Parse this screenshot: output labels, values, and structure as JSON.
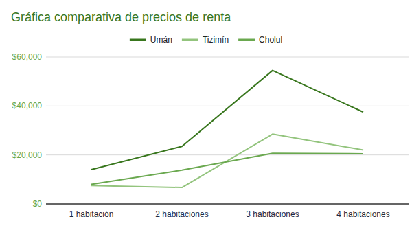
{
  "chart_data": {
    "type": "line",
    "title": "Gráfica comparativa de precios de renta",
    "categories": [
      "1 habitación",
      "2 habitaciones",
      "3 habitaciones",
      "4 habitaciones"
    ],
    "series": [
      {
        "name": "Umán",
        "color": "#38761d",
        "values": [
          14000,
          23500,
          54500,
          37500
        ]
      },
      {
        "name": "Tizimín",
        "color": "#93c47d",
        "values": [
          7500,
          6700,
          28500,
          22000
        ]
      },
      {
        "name": "Cholul",
        "color": "#6aa84f",
        "values": [
          8000,
          13800,
          20700,
          20500
        ]
      }
    ],
    "ylim": [
      0,
      60000
    ],
    "yticks": [
      {
        "value": 0,
        "label": "$0"
      },
      {
        "value": 20000,
        "label": "$20,000"
      },
      {
        "value": 40000,
        "label": "$40,000"
      },
      {
        "value": 60000,
        "label": "$60,000"
      }
    ],
    "grid": true,
    "legend": "top"
  }
}
